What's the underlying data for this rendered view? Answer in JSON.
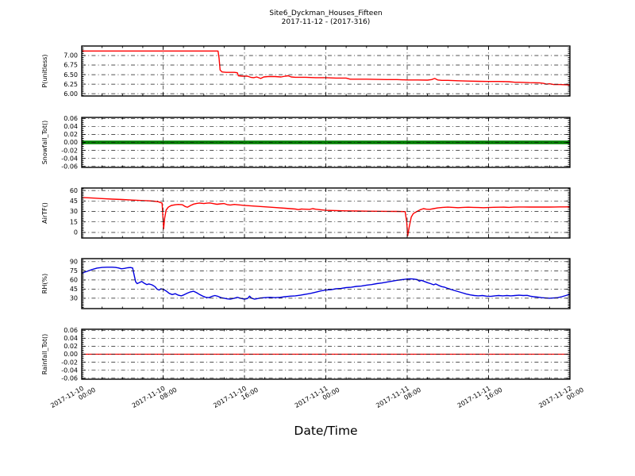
{
  "title": {
    "line1": "Site6_Dyckman_Houses_Fifteen",
    "line2": "2017-11-12 - (2017-316)"
  },
  "colors": {
    "p_line": "#ff0000",
    "snowfall_line": "#008000",
    "airtf_line": "#ff0000",
    "rh_line": "#0000e0",
    "rainfall_line": "#ff0000",
    "grid": "#1a1a1a",
    "axis": "#000000",
    "background": "#ffffff"
  },
  "xaxis": {
    "label": "Date/Time",
    "xlim": [
      0,
      48
    ],
    "xticks": [
      0,
      8,
      16,
      24,
      32,
      40,
      48
    ],
    "xtick_labels": [
      [
        "2017-11-10",
        "00:00"
      ],
      [
        "2017-11-10",
        "08:00"
      ],
      [
        "2017-11-10",
        "16:00"
      ],
      [
        "2017-11-11",
        "00:00"
      ],
      [
        "2017-11-11",
        "08:00"
      ],
      [
        "2017-11-11",
        "16:00"
      ],
      [
        "2017-11-12",
        "00:00"
      ]
    ],
    "minor_step": 2,
    "grid": true
  },
  "chart_data": [
    {
      "type": "line",
      "name": "p-unitless",
      "ylabel": "P(unitless)",
      "color": "#ff0000",
      "linewidth": 1.4,
      "ylim": [
        5.94,
        7.25
      ],
      "yticks": [
        6.0,
        6.25,
        6.5,
        6.75,
        7.0
      ],
      "ytick_labels": [
        "6.00",
        "6.25",
        "6.50",
        "6.75",
        "7.00"
      ],
      "minor_step": 0.05,
      "points": [
        [
          0,
          7.12
        ],
        [
          2,
          7.12
        ],
        [
          4,
          7.12
        ],
        [
          6,
          7.12
        ],
        [
          8,
          7.12
        ],
        [
          10,
          7.12
        ],
        [
          12,
          7.12
        ],
        [
          13.4,
          7.12
        ],
        [
          13.5,
          6.93
        ],
        [
          13.6,
          6.62
        ],
        [
          13.8,
          6.57
        ],
        [
          14.2,
          6.56
        ],
        [
          15.0,
          6.56
        ],
        [
          15.3,
          6.55
        ],
        [
          15.4,
          6.47
        ],
        [
          15.8,
          6.46
        ],
        [
          16.3,
          6.46
        ],
        [
          16.6,
          6.43
        ],
        [
          16.9,
          6.42
        ],
        [
          17.2,
          6.44
        ],
        [
          17.6,
          6.4
        ],
        [
          17.9,
          6.44
        ],
        [
          18.3,
          6.45
        ],
        [
          19.0,
          6.45
        ],
        [
          19.6,
          6.44
        ],
        [
          20.0,
          6.46
        ],
        [
          20.3,
          6.47
        ],
        [
          20.6,
          6.44
        ],
        [
          21.0,
          6.43
        ],
        [
          22.0,
          6.43
        ],
        [
          23.0,
          6.42
        ],
        [
          24.0,
          6.42
        ],
        [
          25.0,
          6.41
        ],
        [
          26.0,
          6.41
        ],
        [
          26.4,
          6.38
        ],
        [
          27.0,
          6.38
        ],
        [
          28.0,
          6.38
        ],
        [
          29.0,
          6.375
        ],
        [
          30.0,
          6.37
        ],
        [
          31.0,
          6.37
        ],
        [
          32.0,
          6.36
        ],
        [
          33.0,
          6.36
        ],
        [
          34.0,
          6.355
        ],
        [
          34.4,
          6.37
        ],
        [
          34.7,
          6.4
        ],
        [
          35.0,
          6.36
        ],
        [
          35.4,
          6.35
        ],
        [
          36.0,
          6.35
        ],
        [
          37.0,
          6.34
        ],
        [
          38.0,
          6.33
        ],
        [
          39.0,
          6.325
        ],
        [
          40.0,
          6.32
        ],
        [
          41.0,
          6.32
        ],
        [
          42.0,
          6.315
        ],
        [
          42.6,
          6.3
        ],
        [
          43.0,
          6.3
        ],
        [
          44.0,
          6.29
        ],
        [
          45.0,
          6.285
        ],
        [
          45.4,
          6.27
        ],
        [
          45.7,
          6.25
        ],
        [
          46.0,
          6.26
        ],
        [
          46.4,
          6.24
        ],
        [
          47.0,
          6.24
        ],
        [
          47.5,
          6.235
        ],
        [
          48,
          6.23
        ]
      ]
    },
    {
      "type": "line",
      "name": "snowfall-tot",
      "ylabel": "Snowfall_Tot()",
      "color": "#008000",
      "linewidth": 4.5,
      "ylim": [
        -0.0625,
        0.0625
      ],
      "yticks": [
        -0.06,
        -0.04,
        -0.02,
        0.0,
        0.02,
        0.04,
        0.06
      ],
      "ytick_labels": [
        "-0.06",
        "-0.04",
        "-0.02",
        "0.00",
        "0.02",
        "0.04",
        "0.06"
      ],
      "minor_step": 0.005,
      "points": [
        [
          0,
          0
        ],
        [
          48,
          0
        ]
      ]
    },
    {
      "type": "line",
      "name": "airtf",
      "ylabel": "AirTF()",
      "color": "#ff0000",
      "linewidth": 1.4,
      "ylim": [
        -8,
        63.5
      ],
      "yticks": [
        0,
        15,
        30,
        45,
        60
      ],
      "ytick_labels": [
        "0",
        "15",
        "30",
        "45",
        "60"
      ],
      "minor_step": 2.5,
      "points": [
        [
          0,
          50
        ],
        [
          1,
          49.2
        ],
        [
          2,
          48.4
        ],
        [
          3,
          47.6
        ],
        [
          4,
          47
        ],
        [
          5,
          46.2
        ],
        [
          6,
          45.6
        ],
        [
          6.5,
          45.2
        ],
        [
          7,
          44.8
        ],
        [
          7.5,
          44
        ],
        [
          7.9,
          42
        ],
        [
          8.0,
          18
        ],
        [
          8.05,
          5
        ],
        [
          8.15,
          20
        ],
        [
          8.3,
          32
        ],
        [
          8.5,
          36
        ],
        [
          8.8,
          38.5
        ],
        [
          9.2,
          39.5
        ],
        [
          9.5,
          40
        ],
        [
          9.9,
          39.5
        ],
        [
          10.2,
          36.8
        ],
        [
          10.4,
          36
        ],
        [
          10.7,
          38.5
        ],
        [
          11.0,
          40.5
        ],
        [
          11.3,
          41.5
        ],
        [
          11.6,
          42
        ],
        [
          12.0,
          41.2
        ],
        [
          12.3,
          41.8
        ],
        [
          12.6,
          42.2
        ],
        [
          13.0,
          41
        ],
        [
          13.3,
          40.2
        ],
        [
          13.6,
          40.8
        ],
        [
          14.0,
          41.2
        ],
        [
          14.3,
          39.8
        ],
        [
          14.6,
          39.2
        ],
        [
          15.0,
          40
        ],
        [
          15.3,
          39.6
        ],
        [
          16,
          38.6
        ],
        [
          17,
          37.6
        ],
        [
          18,
          36.6
        ],
        [
          19,
          35.6
        ],
        [
          20,
          34.6
        ],
        [
          20.5,
          34
        ],
        [
          21,
          33.4
        ],
        [
          21.3,
          32.6
        ],
        [
          21.6,
          33.4
        ],
        [
          22,
          33.2
        ],
        [
          22.4,
          33
        ],
        [
          22.7,
          34
        ],
        [
          23,
          33.2
        ],
        [
          23.5,
          32.4
        ],
        [
          24,
          31.6
        ],
        [
          25,
          31.2
        ],
        [
          26,
          30.8
        ],
        [
          27,
          30.6
        ],
        [
          28,
          30.4
        ],
        [
          29,
          30.2
        ],
        [
          30,
          30.1
        ],
        [
          31,
          30
        ],
        [
          31.8,
          29.8
        ],
        [
          31.95,
          15
        ],
        [
          32.05,
          -5
        ],
        [
          32.2,
          8
        ],
        [
          32.4,
          22
        ],
        [
          32.6,
          27
        ],
        [
          32.9,
          29.5
        ],
        [
          33.3,
          32.5
        ],
        [
          33.6,
          34
        ],
        [
          33.9,
          33.2
        ],
        [
          34.2,
          33
        ],
        [
          34.6,
          34
        ],
        [
          35.0,
          35
        ],
        [
          35.5,
          35.8
        ],
        [
          36.0,
          36.2
        ],
        [
          36.5,
          35.8
        ],
        [
          37,
          35.4
        ],
        [
          37.5,
          35.8
        ],
        [
          38,
          36
        ],
        [
          38.5,
          35.8
        ],
        [
          39,
          35.6
        ],
        [
          39.5,
          35.4
        ],
        [
          40,
          35.6
        ],
        [
          40.5,
          35.9
        ],
        [
          41,
          36
        ],
        [
          41.5,
          36.2
        ],
        [
          42,
          35.8
        ],
        [
          42.5,
          36.2
        ],
        [
          43,
          36.4
        ],
        [
          43.5,
          36.4
        ],
        [
          44,
          36.3
        ],
        [
          44.5,
          36.4
        ],
        [
          45,
          36.3
        ],
        [
          45.5,
          36.4
        ],
        [
          46,
          36.3
        ],
        [
          46.5,
          36.4
        ],
        [
          47,
          36.5
        ],
        [
          47.5,
          36.5
        ],
        [
          48,
          36.6
        ]
      ]
    },
    {
      "type": "line",
      "name": "rh",
      "ylabel": "RH(%)",
      "color": "#0000e0",
      "linewidth": 1.4,
      "ylim": [
        13,
        95
      ],
      "yticks": [
        30,
        45,
        60,
        75,
        90
      ],
      "ytick_labels": [
        "30",
        "45",
        "60",
        "75",
        "90"
      ],
      "minor_step": 2.5,
      "points": [
        [
          0,
          71
        ],
        [
          0.5,
          74
        ],
        [
          1,
          77
        ],
        [
          1.5,
          79.5
        ],
        [
          2,
          80.5
        ],
        [
          2.5,
          81
        ],
        [
          3,
          81
        ],
        [
          3.3,
          80.6
        ],
        [
          3.6,
          79.8
        ],
        [
          3.9,
          78.4
        ],
        [
          4.2,
          79
        ],
        [
          4.5,
          80
        ],
        [
          4.8,
          80.4
        ],
        [
          5.0,
          79.6
        ],
        [
          5.15,
          68
        ],
        [
          5.3,
          57
        ],
        [
          5.45,
          54
        ],
        [
          5.7,
          56
        ],
        [
          5.9,
          57.5
        ],
        [
          6.1,
          55
        ],
        [
          6.4,
          52.5
        ],
        [
          6.6,
          53.5
        ],
        [
          6.9,
          52
        ],
        [
          7.2,
          49
        ],
        [
          7.4,
          45
        ],
        [
          7.6,
          43.5
        ],
        [
          7.8,
          45.5
        ],
        [
          8.0,
          44.5
        ],
        [
          8.3,
          42
        ],
        [
          8.6,
          38
        ],
        [
          8.9,
          36
        ],
        [
          9.2,
          37.5
        ],
        [
          9.5,
          35
        ],
        [
          9.8,
          34
        ],
        [
          10.1,
          36
        ],
        [
          10.4,
          38.5
        ],
        [
          10.7,
          40.5
        ],
        [
          11.0,
          41.5
        ],
        [
          11.3,
          39
        ],
        [
          11.6,
          36
        ],
        [
          11.9,
          33.5
        ],
        [
          12.2,
          31.5
        ],
        [
          12.5,
          31
        ],
        [
          12.8,
          33
        ],
        [
          13.1,
          34.5
        ],
        [
          13.4,
          33
        ],
        [
          13.7,
          31
        ],
        [
          14.0,
          30
        ],
        [
          14.3,
          29
        ],
        [
          14.6,
          28.5
        ],
        [
          15.0,
          30
        ],
        [
          15.3,
          31.5
        ],
        [
          15.6,
          30
        ],
        [
          16.0,
          28.5
        ],
        [
          16.3,
          29.5
        ],
        [
          16.5,
          33.5
        ],
        [
          16.7,
          30
        ],
        [
          17.0,
          28.5
        ],
        [
          17.3,
          29.5
        ],
        [
          17.6,
          30.5
        ],
        [
          18.0,
          31
        ],
        [
          18.5,
          31.5
        ],
        [
          19.0,
          31
        ],
        [
          19.5,
          31.5
        ],
        [
          20.0,
          32.5
        ],
        [
          20.5,
          33.5
        ],
        [
          21.0,
          34
        ],
        [
          21.5,
          35
        ],
        [
          22.0,
          36.5
        ],
        [
          22.5,
          38
        ],
        [
          23.0,
          40
        ],
        [
          23.5,
          42
        ],
        [
          24.0,
          43.5
        ],
        [
          24.5,
          44
        ],
        [
          25,
          45.5
        ],
        [
          25.5,
          46
        ],
        [
          26,
          47.5
        ],
        [
          26.5,
          48
        ],
        [
          27,
          49.5
        ],
        [
          27.5,
          50
        ],
        [
          28,
          51.5
        ],
        [
          28.5,
          52.5
        ],
        [
          29,
          54
        ],
        [
          29.5,
          55
        ],
        [
          30,
          56.5
        ],
        [
          30.5,
          58
        ],
        [
          31,
          59.5
        ],
        [
          31.5,
          60.5
        ],
        [
          32,
          61.5
        ],
        [
          32.3,
          62
        ],
        [
          32.6,
          61.5
        ],
        [
          33.0,
          60.5
        ],
        [
          33.2,
          58
        ],
        [
          33.4,
          59.5
        ],
        [
          33.7,
          57.5
        ],
        [
          34.0,
          55.5
        ],
        [
          34.3,
          54
        ],
        [
          34.6,
          52
        ],
        [
          34.8,
          53.5
        ],
        [
          35.1,
          51
        ],
        [
          35.4,
          49
        ],
        [
          35.7,
          48
        ],
        [
          36.0,
          46
        ],
        [
          36.3,
          44.5
        ],
        [
          36.6,
          43
        ],
        [
          37,
          41
        ],
        [
          37.4,
          39
        ],
        [
          37.8,
          37
        ],
        [
          38.2,
          35.5
        ],
        [
          38.6,
          34.5
        ],
        [
          39,
          34
        ],
        [
          39.4,
          34.5
        ],
        [
          39.8,
          33.5
        ],
        [
          40.2,
          33
        ],
        [
          40.6,
          34
        ],
        [
          41,
          34.5
        ],
        [
          41.4,
          34
        ],
        [
          41.8,
          34.5
        ],
        [
          42.2,
          34
        ],
        [
          42.6,
          34.5
        ],
        [
          43,
          35
        ],
        [
          43.4,
          34.5
        ],
        [
          43.8,
          34.8
        ],
        [
          44.1,
          33.5
        ],
        [
          44.4,
          32.5
        ],
        [
          44.8,
          32
        ],
        [
          45.2,
          31
        ],
        [
          45.6,
          30.5
        ],
        [
          46,
          30
        ],
        [
          46.4,
          30.5
        ],
        [
          46.8,
          31
        ],
        [
          47.2,
          32.5
        ],
        [
          47.6,
          34.5
        ],
        [
          48,
          36.5
        ]
      ]
    },
    {
      "type": "line",
      "name": "rainfall-tot",
      "ylabel": "Rainfall_Tot()",
      "color": "#ff0000",
      "linewidth": 1.3,
      "ylim": [
        -0.0625,
        0.0625
      ],
      "yticks": [
        -0.06,
        -0.04,
        -0.02,
        0.0,
        0.02,
        0.04,
        0.06
      ],
      "ytick_labels": [
        "-0.06",
        "-0.04",
        "-0.02",
        "0.00",
        "0.02",
        "0.04",
        "0.06"
      ],
      "minor_step": 0.005,
      "points": [
        [
          0,
          0
        ],
        [
          48,
          0
        ]
      ]
    }
  ]
}
